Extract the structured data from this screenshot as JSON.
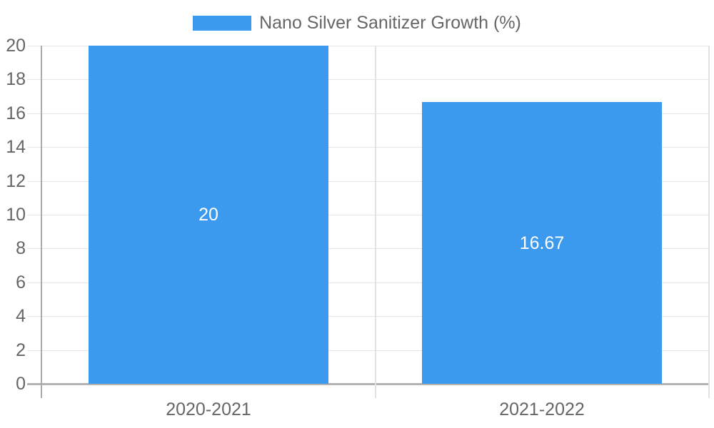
{
  "legend": {
    "label": "Nano Silver Sanitizer Growth (%)"
  },
  "colors": {
    "bar": "#3b99ee",
    "grid_line": "#e6e6e6",
    "zero_line": "#b3b3b3",
    "axis_line": "#ababab",
    "boundary_line": "#e2e2e2",
    "tick_text": "#666666",
    "data_label_text": "#ffffff",
    "background": "#ffffff"
  },
  "chart_data": {
    "type": "bar",
    "title": "Nano Silver Sanitizer Growth (%)",
    "categories": [
      "2020-2021",
      "2021-2022"
    ],
    "series": [
      {
        "name": "Nano Silver Sanitizer Growth (%)",
        "values": [
          20,
          16.67
        ]
      }
    ],
    "values": [
      20,
      16.67
    ],
    "data_labels": [
      "20",
      "16.67"
    ],
    "xlabel": "",
    "ylabel": "",
    "ylim": [
      0,
      20
    ],
    "yticks": [
      0,
      2,
      4,
      6,
      8,
      10,
      12,
      14,
      16,
      18,
      20
    ],
    "grid": true,
    "legend_position": "top-center"
  }
}
